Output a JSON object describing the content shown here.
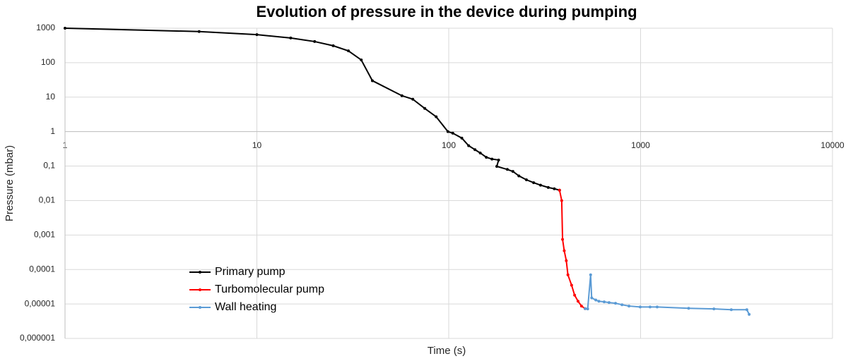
{
  "chart_data": {
    "type": "line",
    "title": "Evolution of pressure in the device during pumping",
    "x_label": "Time (s)",
    "y_label": "Pressure (mbar)",
    "xscale": "log",
    "yscale": "log",
    "xlim": [
      1,
      10000
    ],
    "ylim": [
      1e-06,
      1000
    ],
    "xticks": [
      1,
      10,
      100,
      1000,
      10000
    ],
    "yticks": [
      {
        "value": 1e-06,
        "label": "0,000001"
      },
      {
        "value": 1e-05,
        "label": "0,00001"
      },
      {
        "value": 0.0001,
        "label": "0,0001"
      },
      {
        "value": 0.001,
        "label": "0,001"
      },
      {
        "value": 0.01,
        "label": "0,01"
      },
      {
        "value": 0.1,
        "label": "0,1"
      },
      1,
      10,
      100,
      1000
    ],
    "xaxis_at": 1,
    "grid": true,
    "legend": "lower left",
    "series": [
      {
        "name": "Primary pump",
        "color": "#000000",
        "x": [
          1,
          5,
          10,
          15,
          20,
          25,
          30,
          35,
          40,
          57,
          65,
          75,
          86,
          99,
          105,
          117,
          127,
          137,
          146,
          157,
          168,
          182,
          178,
          202,
          216,
          232,
          254,
          277,
          301,
          330,
          355,
          378
        ],
        "values": [
          1000,
          800,
          650,
          520,
          410,
          310,
          220,
          120,
          30,
          11,
          8.7,
          4.7,
          2.7,
          1,
          0.9,
          0.65,
          0.39,
          0.3,
          0.24,
          0.18,
          0.16,
          0.15,
          0.098,
          0.08,
          0.07,
          0.052,
          0.04,
          0.033,
          0.028,
          0.024,
          0.022,
          0.02
        ]
      },
      {
        "name": "Turbomolecular pump",
        "color": "#ff0000",
        "x": [
          378,
          388,
          392,
          400,
          410,
          418,
          437,
          453,
          472,
          492,
          514
        ],
        "values": [
          0.02,
          0.01,
          0.00075,
          0.00035,
          0.00018,
          7e-05,
          3.5e-05,
          1.8e-05,
          1.2e-05,
          8.7e-06,
          7.3e-06
        ]
      },
      {
        "name": "Wall heating",
        "color": "#5b9bd5",
        "x": [
          514,
          530,
          549,
          556,
          584,
          606,
          646,
          685,
          740,
          800,
          870,
          995,
          1120,
          1220,
          1780,
          2410,
          2970,
          3580,
          3680
        ],
        "values": [
          7.3e-06,
          7.2e-06,
          7e-05,
          1.5e-05,
          1.3e-05,
          1.2e-05,
          1.15e-05,
          1.1e-05,
          1.05e-05,
          9.5e-06,
          8.7e-06,
          8.2e-06,
          8.2e-06,
          8.2e-06,
          7.5e-06,
          7.2e-06,
          6.8e-06,
          6.8e-06,
          5e-06
        ]
      }
    ]
  }
}
